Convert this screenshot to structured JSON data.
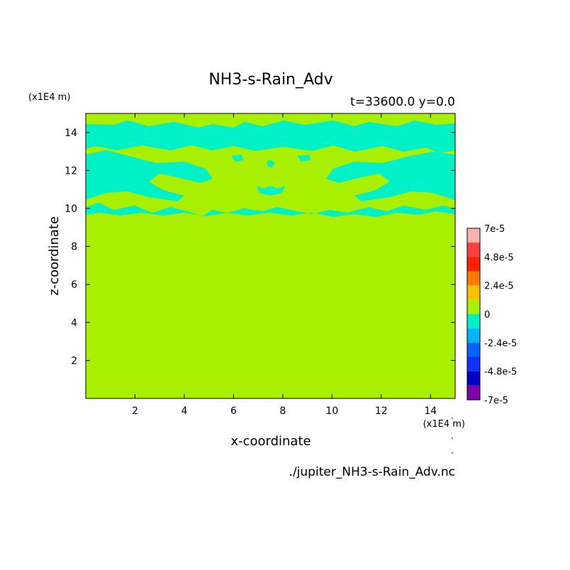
{
  "chart_data": {
    "type": "heatmap",
    "title": "NH3-s-Rain_Adv",
    "subtitle": "t=33600.0 y=0.0",
    "xlabel": "x-coordinate",
    "ylabel": "z-coordinate",
    "x_unit": "(x1E4 m)",
    "y_unit": "(x1E4 m)",
    "xlim": [
      0,
      15
    ],
    "ylim": [
      0,
      15
    ],
    "x_ticks": [
      2,
      4,
      6,
      8,
      10,
      12,
      14
    ],
    "y_ticks": [
      2,
      4,
      6,
      8,
      10,
      12,
      14
    ],
    "grid": false,
    "background_level_color": "#a8f000",
    "anomaly_color": "#00f0c8",
    "colorbar": {
      "position": "right",
      "levels": [
        {
          "color": "#ffb0b0"
        },
        {
          "color": "#ff4040"
        },
        {
          "color": "#ff2000"
        },
        {
          "color": "#ff7a00"
        },
        {
          "color": "#ffc000"
        },
        {
          "color": "#a8f000"
        },
        {
          "color": "#00f0c8"
        },
        {
          "color": "#00b4ff"
        },
        {
          "color": "#0064ff"
        },
        {
          "color": "#1030ff"
        },
        {
          "color": "#0000c8"
        },
        {
          "color": "#8000a8"
        }
      ],
      "tick_labels": [
        "7e-5",
        "4.8e-5",
        "2.4e-5",
        "0",
        "-2.4e-5",
        "-4.8e-5",
        "-7e-5"
      ]
    },
    "source_file": "./jupiter_NH3-s-Rain_Adv.nc"
  }
}
